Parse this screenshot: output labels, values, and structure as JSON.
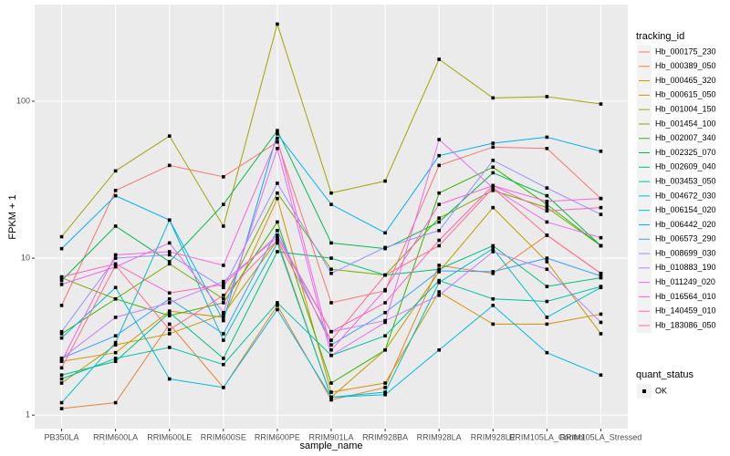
{
  "chart_data": {
    "type": "line",
    "x_label": "sample_name",
    "y_label": "FPKM + 1",
    "legend_title": "tracking_id",
    "status_legend_title": "quant_status",
    "status_legend_items": [
      "OK"
    ],
    "categories": [
      "PB350LA",
      "RRIM600LA",
      "RRIM600LE",
      "RRIM600SE",
      "RRIM600PE",
      "RRIM901LA",
      "RRIM928BA",
      "RRIM928LA",
      "RRIM928LE",
      "RRIM105LA_Control",
      "RRIM105LA_Stressed"
    ],
    "log_y": true,
    "grid": true,
    "legend_position": "right",
    "ylim": [
      0.82,
      413
    ],
    "yticks": [
      1,
      10,
      100
    ],
    "series": [
      {
        "name": "Hb_000175_230",
        "color": "#F8766D",
        "values": [
          5,
          27,
          39,
          33,
          55,
          5.2,
          6.2,
          39,
          51,
          50,
          24
        ]
      },
      {
        "name": "Hb_000389_050",
        "color": "#EA8331",
        "values": [
          1.1,
          1.2,
          3.8,
          1.5,
          5,
          1.25,
          1.5,
          9,
          8,
          14,
          8
        ]
      },
      {
        "name": "Hb_000465_320",
        "color": "#D89000",
        "values": [
          2.2,
          2.5,
          4.6,
          4.2,
          24,
          1.4,
          1.6,
          6.1,
          3.8,
          3.8,
          4.4
        ]
      },
      {
        "name": "Hb_000615_050",
        "color": "#C09B00",
        "values": [
          1.6,
          2.8,
          3.3,
          4.4,
          13,
          1.3,
          2.6,
          8.2,
          21,
          9.5,
          3.3
        ]
      },
      {
        "name": "Hb_001004_150",
        "color": "#A3A500",
        "values": [
          13.7,
          36,
          60,
          16,
          310,
          26,
          31,
          185,
          105,
          107,
          96
        ]
      },
      {
        "name": "Hb_001454_100",
        "color": "#7CAE00",
        "values": [
          7.5,
          5.5,
          9.2,
          5.5,
          26,
          8.5,
          7.8,
          18,
          27,
          21,
          12
        ]
      },
      {
        "name": "Hb_002007_340",
        "color": "#39B600",
        "values": [
          3.3,
          5.5,
          4.3,
          5.2,
          17,
          1.6,
          2.6,
          26,
          38,
          22,
          12
        ]
      },
      {
        "name": "Hb_002325_070",
        "color": "#00BB4E",
        "values": [
          7.2,
          16,
          9.5,
          22,
          65,
          12.5,
          11.5,
          17,
          35,
          25,
          12
        ]
      },
      {
        "name": "Hb_002609_040",
        "color": "#00BF7D",
        "values": [
          1.8,
          2.2,
          4.5,
          2.3,
          11,
          10,
          7.8,
          8.5,
          12,
          6.6,
          7.5
        ]
      },
      {
        "name": "Hb_003453_050",
        "color": "#00C1A3",
        "values": [
          1.7,
          2.3,
          2.7,
          2.1,
          5.2,
          2.4,
          3.2,
          7.2,
          5.5,
          5.3,
          6.6
        ]
      },
      {
        "name": "Hb_004672_030",
        "color": "#00BFC4",
        "values": [
          1.2,
          2.9,
          17.5,
          3,
          12.5,
          1.3,
          1.4,
          7,
          11.5,
          4.2,
          6.5
        ]
      },
      {
        "name": "Hb_006154_020",
        "color": "#00BAE0",
        "values": [
          3.1,
          6.5,
          1.7,
          1.5,
          4.7,
          1.3,
          1.35,
          2.6,
          5,
          2.5,
          1.8
        ]
      },
      {
        "name": "Hb_006442_020",
        "color": "#00B0F6",
        "values": [
          11.5,
          25,
          17.5,
          4,
          62,
          22,
          14.5,
          45,
          54,
          59,
          48
        ]
      },
      {
        "name": "Hb_006573_290",
        "color": "#35A2FF",
        "values": [
          2.3,
          3.2,
          5.5,
          3.3,
          15,
          2.8,
          4.5,
          8.3,
          8.2,
          10,
          7.7
        ]
      },
      {
        "name": "Hb_008699_030",
        "color": "#9590FF",
        "values": [
          3.4,
          10,
          10.5,
          6.5,
          30,
          8,
          11.7,
          15,
          42,
          28,
          19
        ]
      },
      {
        "name": "Hb_010883_190",
        "color": "#C77CFF",
        "values": [
          2.3,
          4.2,
          5.2,
          7.1,
          13.5,
          3.4,
          4,
          5.8,
          11,
          8.5,
          3.9
        ]
      },
      {
        "name": "Hb_011249_020",
        "color": "#E76BF3",
        "values": [
          6.8,
          8.8,
          12.5,
          4.5,
          50,
          2.4,
          3.9,
          57,
          28,
          17,
          13.5
        ]
      },
      {
        "name": "Hb_016564_010",
        "color": "#FA62DB",
        "values": [
          2.2,
          10.5,
          11,
          9,
          58,
          2.6,
          6.3,
          22,
          29,
          23,
          24
        ]
      },
      {
        "name": "Hb_140459_010",
        "color": "#FF62BC",
        "values": [
          7.6,
          9.2,
          6,
          6.8,
          14,
          3.4,
          5.2,
          13,
          29,
          20,
          21
        ]
      },
      {
        "name": "Hb_183086_050",
        "color": "#FF6C91",
        "values": [
          2,
          9,
          3.5,
          5.8,
          13,
          3,
          7.8,
          12,
          28,
          14,
          8
        ]
      }
    ]
  }
}
